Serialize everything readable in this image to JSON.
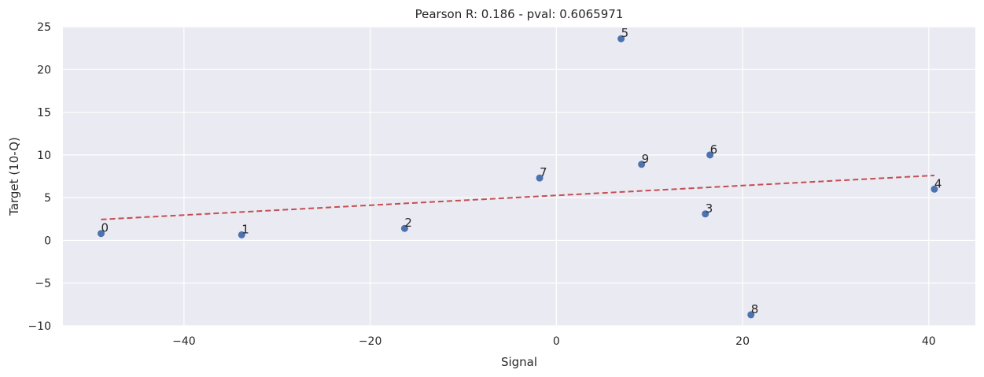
{
  "chart_data": {
    "type": "scatter",
    "title": "Pearson R: 0.186 - pval: 0.6065971",
    "xlabel": "Signal",
    "ylabel": "Target (10-Q)",
    "xlim": [
      -53,
      45
    ],
    "ylim": [
      -10,
      25
    ],
    "xticks": [
      -40,
      -20,
      0,
      20,
      40
    ],
    "xtick_labels": [
      "−40",
      "−20",
      "0",
      "20",
      "40"
    ],
    "yticks": [
      -10,
      -5,
      0,
      5,
      10,
      15,
      20,
      25
    ],
    "ytick_labels": [
      "−10",
      "−5",
      "0",
      "5",
      "10",
      "15",
      "20",
      "25"
    ],
    "grid": true,
    "legend": null,
    "points": [
      {
        "label": "0",
        "x": -48.9,
        "y": 0.8
      },
      {
        "label": "1",
        "x": -33.8,
        "y": 0.65
      },
      {
        "label": "2",
        "x": -16.3,
        "y": 1.4
      },
      {
        "label": "3",
        "x": 16.0,
        "y": 3.1
      },
      {
        "label": "4",
        "x": 40.6,
        "y": 6.0
      },
      {
        "label": "5",
        "x": 6.95,
        "y": 23.6
      },
      {
        "label": "6",
        "x": 16.5,
        "y": 10.0
      },
      {
        "label": "7",
        "x": -1.8,
        "y": 7.3
      },
      {
        "label": "8",
        "x": 20.9,
        "y": -8.7
      },
      {
        "label": "9",
        "x": 9.15,
        "y": 8.9
      }
    ],
    "fit_line": {
      "style": "dashed",
      "x": [
        -48.9,
        40.6
      ],
      "y": [
        2.45,
        7.6
      ]
    },
    "colors": {
      "points": "#4c72b0",
      "fit_line": "#c44e52",
      "plot_bg": "#eaeaf2",
      "grid": "#ffffff"
    }
  }
}
